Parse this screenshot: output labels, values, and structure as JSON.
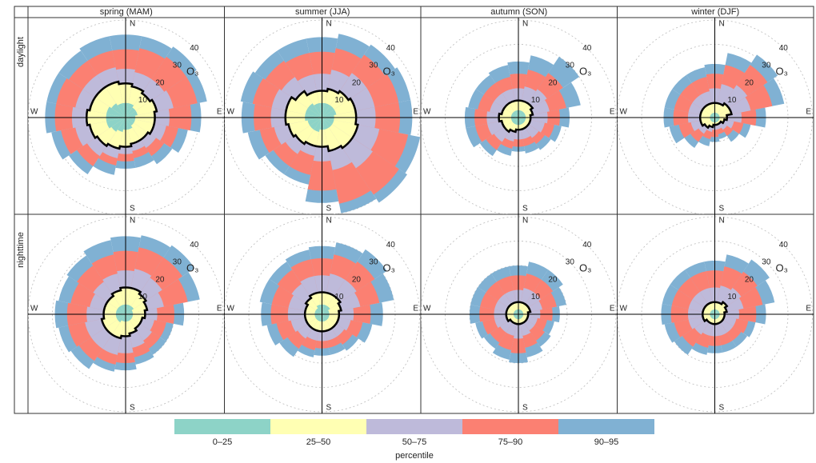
{
  "chart_data": {
    "type": "polar-percentile",
    "columns": [
      "spring (MAM)",
      "summer (JJA)",
      "autumn (SON)",
      "winter (DJF)"
    ],
    "rows": [
      "daylight",
      "nighttime"
    ],
    "directions": [
      "N",
      "E",
      "S",
      "W"
    ],
    "pollutant": "O₃",
    "rlim": [
      0,
      45
    ],
    "rticks": [
      10,
      20,
      30,
      40
    ],
    "legend_title": "percentile",
    "series": [
      {
        "name": "0–25",
        "color": "#8dd3c7"
      },
      {
        "name": "25–50",
        "color": "#ffffb3"
      },
      {
        "name": "50–75",
        "color": "#bebada"
      },
      {
        "name": "75–90",
        "color": "#fb8072"
      },
      {
        "name": "90–95",
        "color": "#80b1d3"
      }
    ],
    "panels": [
      {
        "values": [
          [
            6,
            6,
            5,
            5,
            4,
            4,
            4,
            5,
            5,
            6,
            7,
            8,
            8,
            8,
            7,
            6
          ],
          [
            14,
            13,
            12,
            13,
            12,
            12,
            11,
            11,
            12,
            13,
            14,
            15,
            16,
            15,
            15,
            15
          ],
          [
            20,
            19,
            19,
            20,
            18,
            17,
            15,
            14,
            15,
            17,
            19,
            21,
            22,
            21,
            21,
            21
          ],
          [
            28,
            29,
            30,
            30,
            27,
            22,
            19,
            17,
            18,
            20,
            24,
            27,
            29,
            29,
            28,
            28
          ],
          [
            34,
            34,
            35,
            34,
            31,
            26,
            23,
            21,
            21,
            24,
            28,
            31,
            33,
            33,
            33,
            34
          ]
        ]
      },
      {
        "values": [
          [
            6,
            6,
            6,
            6,
            5,
            5,
            5,
            5,
            5,
            6,
            6,
            6,
            7,
            7,
            7,
            6
          ],
          [
            11,
            12,
            13,
            14,
            14,
            15,
            15,
            14,
            12,
            12,
            13,
            14,
            15,
            15,
            13,
            11
          ],
          [
            18,
            20,
            22,
            22,
            22,
            24,
            25,
            22,
            18,
            16,
            18,
            20,
            21,
            21,
            20,
            18
          ],
          [
            27,
            29,
            31,
            32,
            32,
            36,
            38,
            36,
            30,
            24,
            24,
            26,
            28,
            29,
            28,
            27
          ],
          [
            33,
            35,
            36,
            37,
            37,
            41,
            42,
            40,
            35,
            28,
            28,
            31,
            33,
            34,
            33,
            33
          ]
        ]
      },
      {
        "values": [
          [
            3,
            3,
            3,
            3,
            3,
            3,
            3,
            3,
            3,
            3,
            3,
            3,
            3,
            3,
            3,
            3
          ],
          [
            7,
            7,
            7,
            6,
            5,
            5,
            5,
            5,
            5,
            6,
            7,
            7,
            8,
            7,
            7,
            7
          ],
          [
            12,
            13,
            14,
            13,
            12,
            11,
            10,
            9,
            9,
            10,
            12,
            13,
            13,
            12,
            12,
            12
          ],
          [
            18,
            20,
            22,
            20,
            17,
            15,
            13,
            12,
            12,
            13,
            16,
            18,
            18,
            17,
            17,
            17
          ],
          [
            23,
            26,
            30,
            26,
            21,
            18,
            16,
            15,
            14,
            16,
            19,
            22,
            22,
            21,
            21,
            22
          ]
        ]
      },
      {
        "values": [
          [
            2,
            2,
            2,
            2,
            2,
            2,
            2,
            2,
            2,
            2,
            2,
            2,
            2,
            2,
            2,
            2
          ],
          [
            6,
            6,
            7,
            7,
            5,
            4,
            3,
            3,
            3,
            4,
            5,
            6,
            6,
            6,
            6,
            6
          ],
          [
            12,
            14,
            16,
            15,
            11,
            8,
            6,
            5,
            5,
            6,
            8,
            10,
            11,
            11,
            11,
            11
          ],
          [
            18,
            22,
            26,
            24,
            17,
            12,
            9,
            7,
            8,
            9,
            12,
            15,
            17,
            17,
            17,
            17
          ],
          [
            22,
            27,
            31,
            29,
            21,
            15,
            12,
            9,
            10,
            12,
            15,
            19,
            21,
            21,
            21,
            21
          ]
        ]
      },
      {
        "values": [
          [
            4,
            4,
            4,
            3,
            3,
            3,
            3,
            3,
            3,
            3,
            4,
            4,
            4,
            4,
            4,
            4
          ],
          [
            11,
            11,
            10,
            9,
            8,
            7,
            7,
            8,
            9,
            10,
            10,
            10,
            9,
            9,
            9,
            10
          ],
          [
            18,
            19,
            18,
            16,
            13,
            12,
            13,
            14,
            16,
            17,
            17,
            17,
            16,
            15,
            16,
            17
          ],
          [
            26,
            28,
            28,
            26,
            20,
            17,
            17,
            18,
            20,
            21,
            23,
            24,
            24,
            23,
            24,
            25
          ],
          [
            32,
            33,
            34,
            31,
            24,
            20,
            20,
            21,
            23,
            24,
            27,
            28,
            29,
            28,
            29,
            31
          ]
        ]
      },
      {
        "values": [
          [
            4,
            4,
            4,
            3,
            3,
            3,
            3,
            3,
            3,
            3,
            3,
            3,
            3,
            3,
            3,
            4
          ],
          [
            9,
            9,
            9,
            8,
            7,
            7,
            7,
            7,
            7,
            7,
            7,
            7,
            7,
            7,
            8,
            9
          ],
          [
            16,
            17,
            17,
            16,
            13,
            12,
            11,
            11,
            11,
            11,
            12,
            13,
            14,
            14,
            15,
            16
          ],
          [
            23,
            25,
            26,
            24,
            20,
            17,
            15,
            14,
            14,
            15,
            17,
            19,
            21,
            21,
            22,
            23
          ],
          [
            28,
            30,
            32,
            30,
            25,
            21,
            18,
            17,
            17,
            18,
            21,
            23,
            25,
            26,
            26,
            27
          ]
        ]
      },
      {
        "values": [
          [
            2,
            2,
            2,
            2,
            2,
            2,
            2,
            2,
            2,
            2,
            2,
            2,
            2,
            2,
            2,
            2
          ],
          [
            5,
            5,
            5,
            5,
            4,
            4,
            4,
            4,
            4,
            4,
            4,
            5,
            5,
            5,
            5,
            5
          ],
          [
            10,
            11,
            11,
            10,
            9,
            8,
            8,
            9,
            10,
            9,
            9,
            10,
            10,
            10,
            10,
            10
          ],
          [
            16,
            17,
            17,
            16,
            14,
            12,
            13,
            14,
            16,
            15,
            14,
            15,
            16,
            16,
            16,
            16
          ],
          [
            20,
            22,
            22,
            20,
            17,
            15,
            16,
            18,
            20,
            19,
            17,
            18,
            20,
            20,
            20,
            20
          ]
        ]
      },
      {
        "values": [
          [
            2,
            2,
            2,
            2,
            2,
            2,
            2,
            2,
            2,
            2,
            2,
            2,
            2,
            2,
            2,
            2
          ],
          [
            5,
            5,
            6,
            5,
            4,
            4,
            4,
            4,
            4,
            4,
            4,
            5,
            5,
            5,
            5,
            5
          ],
          [
            11,
            12,
            13,
            12,
            10,
            9,
            9,
            9,
            9,
            9,
            10,
            11,
            11,
            11,
            11,
            11
          ],
          [
            18,
            20,
            21,
            20,
            17,
            14,
            13,
            13,
            13,
            14,
            16,
            17,
            18,
            18,
            18,
            18
          ],
          [
            22,
            25,
            27,
            25,
            21,
            17,
            16,
            16,
            16,
            17,
            20,
            21,
            22,
            22,
            22,
            22
          ]
        ]
      }
    ]
  }
}
